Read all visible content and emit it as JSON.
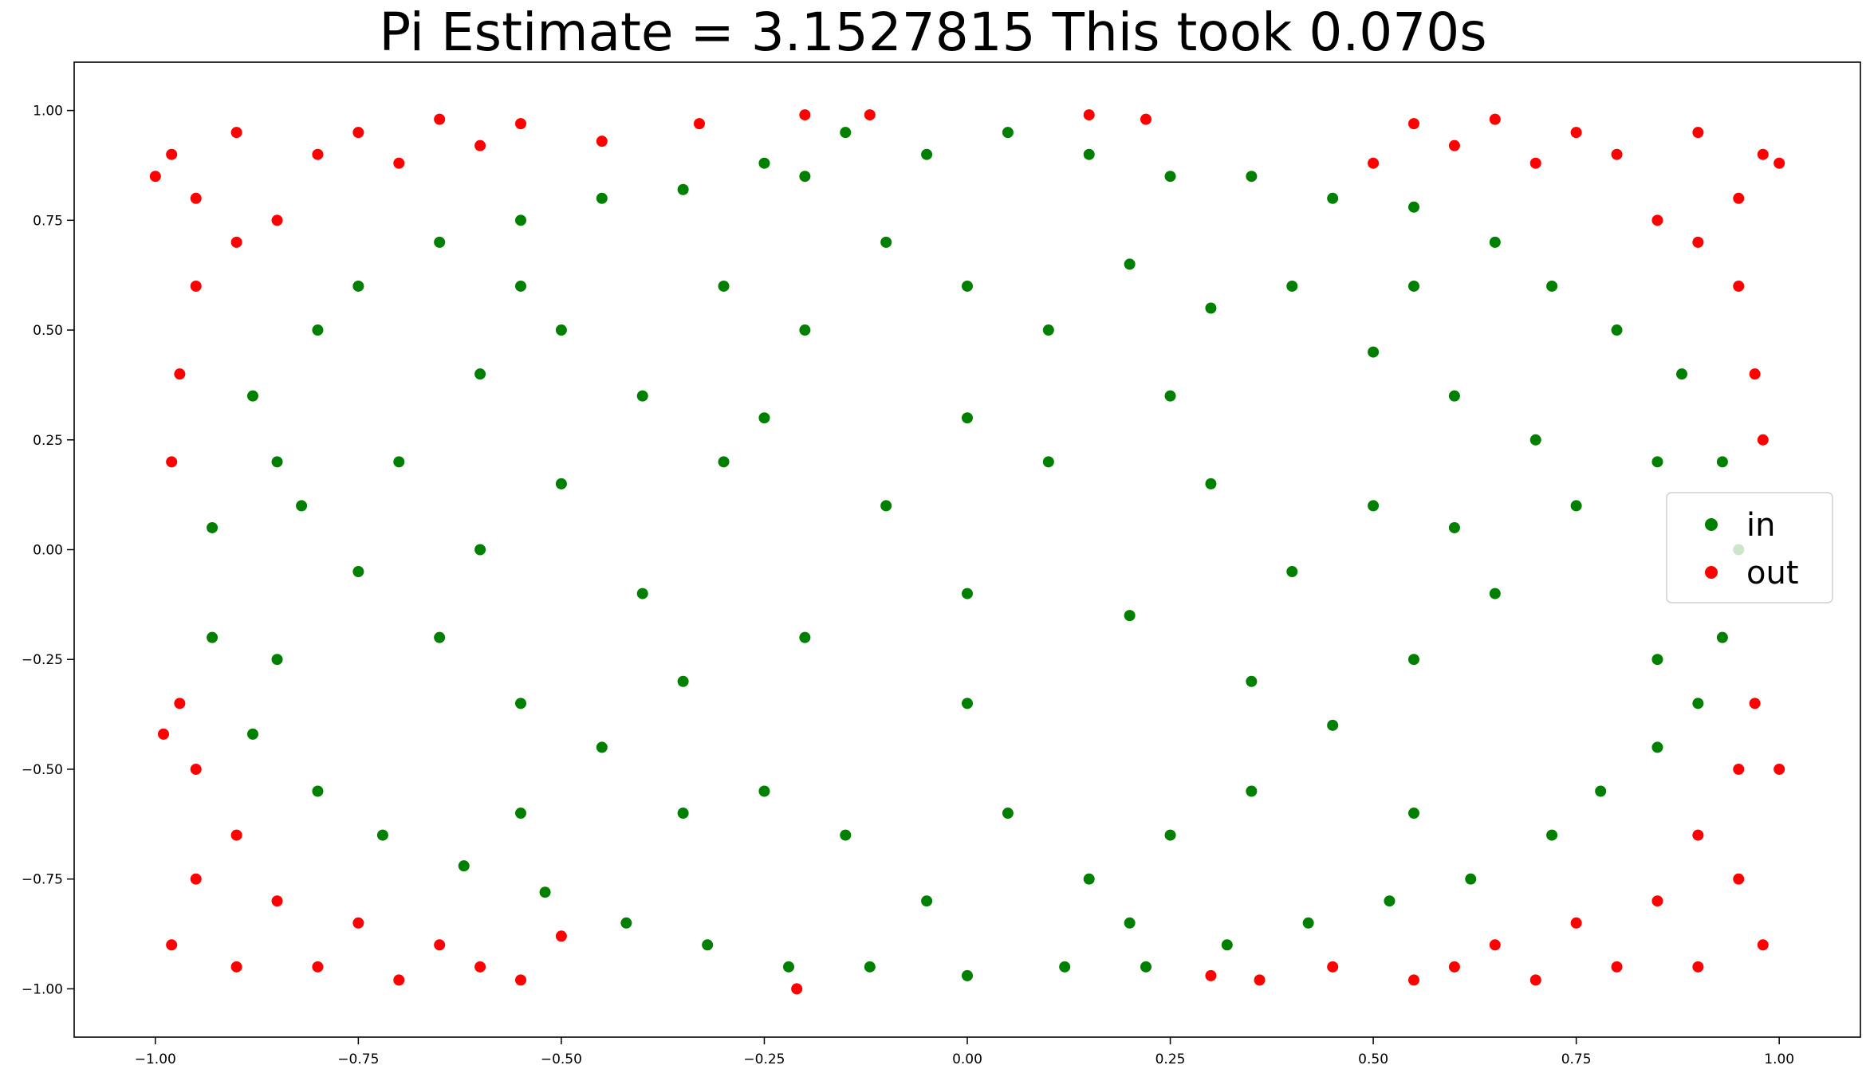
{
  "chart_data": {
    "type": "scatter",
    "title": "Pi Estimate = 3.1527815 This took 0.070s",
    "xlabel": "",
    "ylabel": "",
    "xlim": [
      -1.1,
      1.1
    ],
    "ylim": [
      -1.11,
      1.11
    ],
    "grid": false,
    "legend_position": "center-right",
    "x_ticks": [
      "−1.00",
      "−0.75",
      "−0.50",
      "−0.25",
      "0.00",
      "0.25",
      "0.50",
      "0.75",
      "1.00"
    ],
    "y_ticks": [
      "−1.00",
      "−0.75",
      "−0.50",
      "−0.25",
      "0.00",
      "0.25",
      "0.50",
      "0.75",
      "1.00"
    ],
    "series": [
      {
        "name": "in",
        "color": "#008000",
        "points": [
          [
            -0.93,
            0.05
          ],
          [
            -0.88,
            0.35
          ],
          [
            -0.8,
            0.5
          ],
          [
            -0.75,
            0.6
          ],
          [
            -0.65,
            0.7
          ],
          [
            -0.55,
            0.75
          ],
          [
            -0.45,
            0.8
          ],
          [
            -0.35,
            0.82
          ],
          [
            -0.25,
            0.88
          ],
          [
            -0.15,
            0.95
          ],
          [
            -0.05,
            0.9
          ],
          [
            0.05,
            0.95
          ],
          [
            0.15,
            0.9
          ],
          [
            0.25,
            0.85
          ],
          [
            0.35,
            0.85
          ],
          [
            0.45,
            0.8
          ],
          [
            0.55,
            0.78
          ],
          [
            0.65,
            0.7
          ],
          [
            0.72,
            0.6
          ],
          [
            0.8,
            0.5
          ],
          [
            0.88,
            0.4
          ],
          [
            0.93,
            0.2
          ],
          [
            0.95,
            0.0
          ],
          [
            0.93,
            -0.2
          ],
          [
            0.9,
            -0.35
          ],
          [
            0.85,
            -0.45
          ],
          [
            0.78,
            -0.55
          ],
          [
            0.72,
            -0.65
          ],
          [
            0.62,
            -0.75
          ],
          [
            0.52,
            -0.8
          ],
          [
            0.42,
            -0.85
          ],
          [
            0.32,
            -0.9
          ],
          [
            0.22,
            -0.95
          ],
          [
            0.12,
            -0.95
          ],
          [
            0.0,
            -0.97
          ],
          [
            -0.12,
            -0.95
          ],
          [
            -0.22,
            -0.95
          ],
          [
            -0.32,
            -0.9
          ],
          [
            -0.42,
            -0.85
          ],
          [
            -0.52,
            -0.78
          ],
          [
            -0.62,
            -0.72
          ],
          [
            -0.72,
            -0.65
          ],
          [
            -0.8,
            -0.55
          ],
          [
            -0.88,
            -0.42
          ],
          [
            -0.93,
            -0.2
          ],
          [
            -0.7,
            0.2
          ],
          [
            -0.6,
            0.4
          ],
          [
            -0.5,
            0.5
          ],
          [
            -0.4,
            0.35
          ],
          [
            -0.3,
            0.6
          ],
          [
            -0.2,
            0.5
          ],
          [
            -0.1,
            0.7
          ],
          [
            0.0,
            0.6
          ],
          [
            0.1,
            0.5
          ],
          [
            0.2,
            0.65
          ],
          [
            0.3,
            0.55
          ],
          [
            0.4,
            0.6
          ],
          [
            0.5,
            0.45
          ],
          [
            0.6,
            0.35
          ],
          [
            0.7,
            0.25
          ],
          [
            0.75,
            0.1
          ],
          [
            0.65,
            -0.1
          ],
          [
            0.55,
            -0.25
          ],
          [
            0.45,
            -0.4
          ],
          [
            0.35,
            -0.55
          ],
          [
            0.25,
            -0.65
          ],
          [
            0.15,
            -0.75
          ],
          [
            0.05,
            -0.6
          ],
          [
            -0.05,
            -0.8
          ],
          [
            -0.15,
            -0.65
          ],
          [
            -0.25,
            -0.55
          ],
          [
            -0.35,
            -0.6
          ],
          [
            -0.45,
            -0.45
          ],
          [
            -0.55,
            -0.35
          ],
          [
            -0.65,
            -0.2
          ],
          [
            -0.75,
            -0.05
          ],
          [
            -0.82,
            0.1
          ],
          [
            -0.6,
            0.0
          ],
          [
            -0.5,
            0.15
          ],
          [
            -0.4,
            -0.1
          ],
          [
            -0.3,
            0.2
          ],
          [
            -0.2,
            -0.2
          ],
          [
            -0.1,
            0.1
          ],
          [
            0.0,
            -0.1
          ],
          [
            0.1,
            0.2
          ],
          [
            0.2,
            -0.15
          ],
          [
            0.3,
            0.15
          ],
          [
            0.4,
            -0.05
          ],
          [
            0.5,
            0.1
          ],
          [
            0.6,
            0.05
          ],
          [
            -0.25,
            0.3
          ],
          [
            0.25,
            0.35
          ],
          [
            -0.35,
            -0.3
          ],
          [
            0.35,
            -0.3
          ],
          [
            0.0,
            0.3
          ],
          [
            0.0,
            -0.35
          ],
          [
            -0.55,
            0.6
          ],
          [
            0.55,
            0.6
          ],
          [
            -0.55,
            -0.6
          ],
          [
            0.55,
            -0.6
          ],
          [
            -0.85,
            0.2
          ],
          [
            0.85,
            0.2
          ],
          [
            -0.85,
            -0.25
          ],
          [
            0.85,
            -0.25
          ],
          [
            -0.2,
            0.85
          ],
          [
            0.2,
            -0.85
          ]
        ]
      },
      {
        "name": "out",
        "color": "#ff0000",
        "points": [
          [
            -0.98,
            0.9
          ],
          [
            -0.95,
            0.8
          ],
          [
            -0.9,
            0.95
          ],
          [
            -0.85,
            0.75
          ],
          [
            -0.8,
            0.9
          ],
          [
            -0.75,
            0.95
          ],
          [
            -0.7,
            0.88
          ],
          [
            -0.65,
            0.98
          ],
          [
            -0.6,
            0.92
          ],
          [
            -0.55,
            0.97
          ],
          [
            -0.95,
            0.6
          ],
          [
            -0.97,
            0.4
          ],
          [
            -0.98,
            0.2
          ],
          [
            -0.9,
            0.7
          ],
          [
            -0.98,
            -0.9
          ],
          [
            -0.95,
            -0.75
          ],
          [
            -0.9,
            -0.95
          ],
          [
            -0.85,
            -0.8
          ],
          [
            -0.8,
            -0.95
          ],
          [
            -0.75,
            -0.85
          ],
          [
            -0.7,
            -0.98
          ],
          [
            -0.65,
            -0.9
          ],
          [
            -0.6,
            -0.95
          ],
          [
            -0.55,
            -0.98
          ],
          [
            -0.95,
            -0.5
          ],
          [
            -0.97,
            -0.35
          ],
          [
            -0.9,
            -0.65
          ],
          [
            0.98,
            0.9
          ],
          [
            0.95,
            0.8
          ],
          [
            0.9,
            0.95
          ],
          [
            0.85,
            0.75
          ],
          [
            0.8,
            0.9
          ],
          [
            0.75,
            0.95
          ],
          [
            0.7,
            0.88
          ],
          [
            0.65,
            0.98
          ],
          [
            0.6,
            0.92
          ],
          [
            0.55,
            0.97
          ],
          [
            0.95,
            0.6
          ],
          [
            0.97,
            0.4
          ],
          [
            0.98,
            0.25
          ],
          [
            0.9,
            0.7
          ],
          [
            0.98,
            -0.9
          ],
          [
            0.95,
            -0.75
          ],
          [
            0.9,
            -0.95
          ],
          [
            0.85,
            -0.8
          ],
          [
            0.8,
            -0.95
          ],
          [
            0.75,
            -0.85
          ],
          [
            0.7,
            -0.98
          ],
          [
            0.65,
            -0.9
          ],
          [
            0.6,
            -0.95
          ],
          [
            0.55,
            -0.98
          ],
          [
            0.95,
            -0.5
          ],
          [
            0.97,
            -0.35
          ],
          [
            0.9,
            -0.65
          ],
          [
            -0.2,
            0.99
          ],
          [
            0.22,
            0.98
          ],
          [
            -0.21,
            -1.0
          ],
          [
            0.3,
            -0.97
          ],
          [
            -0.45,
            0.93
          ],
          [
            0.45,
            -0.95
          ],
          [
            -0.33,
            0.97
          ],
          [
            0.36,
            -0.98
          ],
          [
            0.15,
            0.99
          ],
          [
            -0.12,
            0.99
          ],
          [
            0.5,
            0.88
          ],
          [
            -0.5,
            -0.88
          ],
          [
            1.0,
            0.88
          ],
          [
            1.0,
            -0.5
          ],
          [
            -1.0,
            0.85
          ],
          [
            -0.99,
            -0.42
          ]
        ]
      }
    ]
  }
}
